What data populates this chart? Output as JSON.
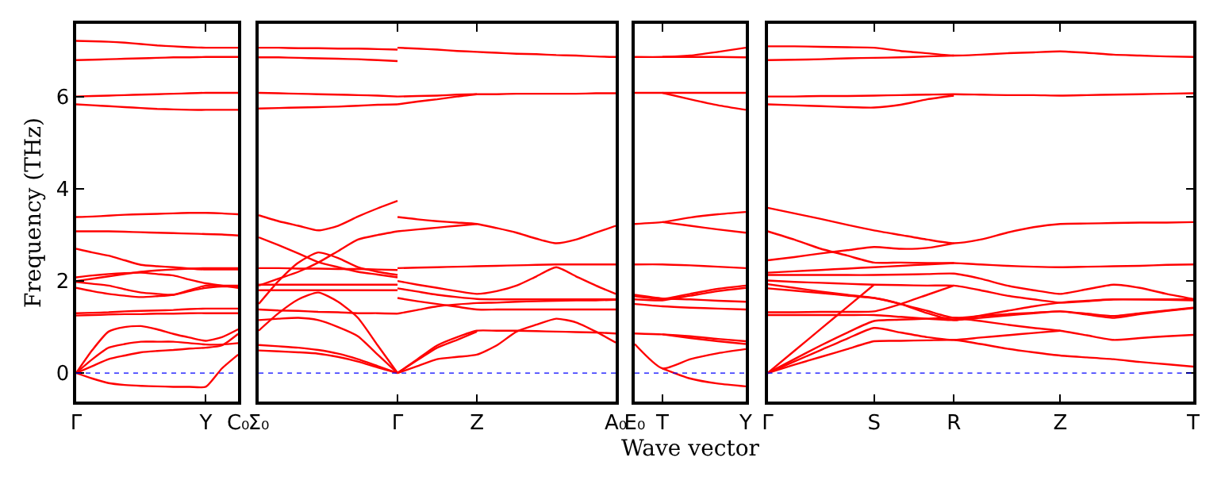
{
  "chart_data": [
    {
      "type": "line",
      "ylabel": "Frequency (THz)",
      "categories": [
        "Γ",
        null,
        null,
        null,
        null,
        null,
        null,
        null,
        "Y",
        null,
        "C₀"
      ],
      "ylim": [
        -0.62,
        7.59
      ],
      "yticks": [
        0,
        2,
        4,
        6
      ],
      "line_style": "solid",
      "ref_lines": [
        {
          "axis": "y",
          "value": 0,
          "color": "#0000ff",
          "line_style": "dotted"
        }
      ],
      "series": [
        {
          "color": "#ff0000",
          "values": [
            7.22,
            7.21,
            7.2,
            7.18,
            7.15,
            7.12,
            7.1,
            7.08,
            7.07,
            7.07,
            7.07
          ]
        },
        {
          "color": "#ff0000",
          "values": [
            6.8,
            6.81,
            6.82,
            6.83,
            6.84,
            6.85,
            6.86,
            6.86,
            6.87,
            6.87,
            6.87
          ]
        },
        {
          "color": "#ff0000",
          "values": [
            6.01,
            6.02,
            6.03,
            6.04,
            6.05,
            6.06,
            6.07,
            6.08,
            6.09,
            6.09,
            6.09
          ]
        },
        {
          "color": "#ff0000",
          "values": [
            5.84,
            5.82,
            5.8,
            5.78,
            5.76,
            5.74,
            5.73,
            5.72,
            5.72,
            5.72,
            5.72
          ]
        },
        {
          "color": "#ff0000",
          "values": [
            3.39,
            3.4,
            3.42,
            3.44,
            3.45,
            3.46,
            3.47,
            3.48,
            3.48,
            3.47,
            3.45
          ]
        },
        {
          "color": "#ff0000",
          "values": [
            3.08,
            3.08,
            3.08,
            3.07,
            3.06,
            3.05,
            3.04,
            3.03,
            3.02,
            3.01,
            2.99
          ]
        },
        {
          "color": "#ff0000",
          "values": [
            2.7,
            2.62,
            2.55,
            2.45,
            2.35,
            2.32,
            2.3,
            2.27,
            2.25,
            2.25,
            2.25
          ]
        },
        {
          "color": "#ff0000",
          "values": [
            2.08,
            2.12,
            2.15,
            2.17,
            2.18,
            2.15,
            2.12,
            2.03,
            1.95,
            1.9,
            1.85
          ]
        },
        {
          "color": "#ff0000",
          "values": [
            1.98,
            1.94,
            1.9,
            1.82,
            1.75,
            1.72,
            1.7,
            1.78,
            1.85,
            1.88,
            1.88
          ]
        },
        {
          "color": "#ff0000",
          "values": [
            1.85,
            1.78,
            1.72,
            1.68,
            1.65,
            1.67,
            1.7,
            1.8,
            1.9,
            1.9,
            1.9
          ]
        },
        {
          "color": "#ff0000",
          "values": [
            2.0,
            2.05,
            2.1,
            2.15,
            2.2,
            2.23,
            2.25,
            2.27,
            2.28,
            2.28,
            2.28
          ]
        },
        {
          "color": "#ff0000",
          "values": [
            1.25,
            1.26,
            1.27,
            1.28,
            1.28,
            1.29,
            1.29,
            1.3,
            1.3,
            1.3,
            1.3
          ]
        },
        {
          "color": "#ff0000",
          "values": [
            1.3,
            1.31,
            1.32,
            1.34,
            1.35,
            1.36,
            1.37,
            1.39,
            1.4,
            1.4,
            1.4
          ]
        },
        {
          "color": "#ff0000",
          "values": [
            0,
            0.5,
            0.9,
            1.0,
            1.02,
            0.95,
            0.85,
            0.77,
            0.7,
            0.78,
            0.95
          ]
        },
        {
          "color": "#ff0000",
          "values": [
            0,
            0.3,
            0.55,
            0.63,
            0.68,
            0.68,
            0.68,
            0.65,
            0.62,
            0.62,
            0.65
          ]
        },
        {
          "color": "#ff0000",
          "values": [
            0,
            0.15,
            0.3,
            0.38,
            0.45,
            0.48,
            0.5,
            0.53,
            0.55,
            0.6,
            0.85
          ]
        },
        {
          "color": "#ff0000",
          "values": [
            0,
            -0.12,
            -0.22,
            -0.26,
            -0.28,
            -0.29,
            -0.3,
            -0.3,
            -0.3,
            0.1,
            0.4
          ]
        }
      ]
    },
    {
      "type": "line",
      "categories": [
        "Σ₀",
        null,
        null,
        null,
        null,
        null,
        null,
        "Γ",
        null,
        null,
        null,
        "Z",
        null,
        null,
        null,
        null,
        null,
        null,
        "A₀"
      ],
      "ylim": [
        -0.62,
        7.59
      ],
      "yticks": [
        0,
        2,
        4,
        6
      ],
      "tick_labels": "x",
      "line_style": "solid",
      "ref_lines": [
        {
          "axis": "y",
          "value": 0,
          "color": "#0000ff",
          "line_style": "dotted"
        }
      ],
      "series": [
        {
          "color": "#ff0000",
          "values": [
            7.07,
            7.07,
            7.06,
            7.06,
            7.05,
            7.05,
            7.04,
            7.03,
            null,
            null,
            null,
            null,
            null,
            null,
            null,
            null,
            null,
            null,
            null
          ]
        },
        {
          "color": "#ff0000",
          "values": [
            6.86,
            6.86,
            6.85,
            6.84,
            6.83,
            6.82,
            6.8,
            6.78,
            null,
            null,
            null,
            null,
            null,
            null,
            null,
            null,
            null,
            null,
            null
          ]
        },
        {
          "color": "#ff0000",
          "values": [
            6.09,
            6.08,
            6.07,
            6.06,
            6.05,
            6.04,
            6.03,
            6.01,
            null,
            null,
            null,
            null,
            null,
            null,
            null,
            null,
            null,
            null,
            null
          ]
        },
        {
          "color": "#ff0000",
          "values": [
            5.75,
            5.76,
            5.77,
            5.78,
            5.79,
            5.81,
            5.83,
            5.84,
            null,
            null,
            null,
            null,
            null,
            null,
            null,
            null,
            null,
            null,
            null
          ]
        },
        {
          "color": "#ff0000",
          "values": [
            3.43,
            3.3,
            3.2,
            3.1,
            3.2,
            3.4,
            3.58,
            3.74,
            null,
            null,
            null,
            null,
            null,
            null,
            null,
            null,
            null,
            null,
            null
          ]
        },
        {
          "color": "#ff0000",
          "values": [
            2.95,
            2.78,
            2.6,
            2.41,
            2.3,
            2.2,
            2.14,
            2.08,
            null,
            null,
            null,
            null,
            null,
            null,
            null,
            null,
            null,
            null,
            null
          ]
        },
        {
          "color": "#ff0000",
          "values": [
            1.9,
            2.05,
            2.2,
            2.4,
            2.65,
            2.9,
            3.0,
            3.08,
            null,
            null,
            null,
            null,
            null,
            null,
            null,
            null,
            null,
            null,
            null
          ]
        },
        {
          "color": "#ff0000",
          "values": [
            1.5,
            2.0,
            2.4,
            2.62,
            2.5,
            2.3,
            2.2,
            2.13,
            null,
            null,
            null,
            null,
            null,
            null,
            null,
            null,
            null,
            null,
            null
          ]
        },
        {
          "color": "#ff0000",
          "values": [
            2.28,
            2.28,
            2.27,
            2.27,
            2.26,
            2.26,
            2.25,
            2.24,
            null,
            null,
            null,
            null,
            null,
            null,
            null,
            null,
            null,
            null,
            null
          ]
        },
        {
          "color": "#ff0000",
          "values": [
            1.92,
            1.92,
            1.92,
            1.92,
            1.92,
            1.92,
            1.92,
            1.92,
            null,
            null,
            null,
            null,
            null,
            null,
            null,
            null,
            null,
            null,
            null
          ]
        },
        {
          "color": "#ff0000",
          "values": [
            1.8,
            1.8,
            1.8,
            1.8,
            1.8,
            1.8,
            1.8,
            1.8,
            null,
            null,
            null,
            null,
            null,
            null,
            null,
            null,
            null,
            null,
            null
          ]
        },
        {
          "color": "#ff0000",
          "values": [
            1.38,
            1.36,
            1.35,
            1.33,
            1.32,
            1.3,
            1.3,
            1.29,
            null,
            null,
            null,
            null,
            null,
            null,
            null,
            null,
            null,
            null,
            null
          ]
        },
        {
          "color": "#ff0000",
          "values": [
            0.92,
            1.3,
            1.6,
            1.75,
            1.55,
            1.2,
            0.6,
            0,
            null,
            null,
            null,
            null,
            null,
            null,
            null,
            null,
            null,
            null,
            null
          ]
        },
        {
          "color": "#ff0000",
          "values": [
            1.15,
            1.18,
            1.2,
            1.15,
            1.0,
            0.8,
            0.4,
            0,
            null,
            null,
            null,
            null,
            null,
            null,
            null,
            null,
            null,
            null,
            null
          ]
        },
        {
          "color": "#ff0000",
          "values": [
            0.61,
            0.58,
            0.55,
            0.5,
            0.42,
            0.3,
            0.15,
            0,
            null,
            null,
            null,
            null,
            null,
            null,
            null,
            null,
            null,
            null,
            null
          ]
        },
        {
          "color": "#ff0000",
          "values": [
            0.49,
            0.47,
            0.45,
            0.42,
            0.35,
            0.25,
            0.12,
            0,
            null,
            null,
            null,
            null,
            null,
            null,
            null,
            null,
            null,
            null,
            null
          ]
        },
        {
          "color": "#ff0000",
          "values": [
            null,
            null,
            null,
            null,
            null,
            null,
            null,
            7.07,
            7.05,
            7.03,
            7.0,
            6.98,
            6.96,
            6.94,
            6.93,
            6.91,
            6.9,
            6.88,
            6.87
          ]
        },
        {
          "color": "#ff0000",
          "values": [
            null,
            null,
            null,
            null,
            null,
            null,
            null,
            6.01,
            6.02,
            6.03,
            6.05,
            6.06,
            6.06,
            6.07,
            6.07,
            6.07,
            6.07,
            6.08,
            6.08
          ]
        },
        {
          "color": "#ff0000",
          "values": [
            null,
            null,
            null,
            null,
            null,
            null,
            null,
            5.84,
            5.9,
            5.95,
            6.01,
            6.06,
            null,
            null,
            null,
            null,
            null,
            null,
            null
          ]
        },
        {
          "color": "#ff0000",
          "values": [
            null,
            null,
            null,
            null,
            null,
            null,
            null,
            3.39,
            3.34,
            3.3,
            3.27,
            3.24,
            3.15,
            3.05,
            2.92,
            2.82,
            2.9,
            3.05,
            3.2
          ]
        },
        {
          "color": "#ff0000",
          "values": [
            null,
            null,
            null,
            null,
            null,
            null,
            null,
            3.08,
            3.12,
            3.16,
            3.2,
            3.24,
            null,
            null,
            null,
            null,
            null,
            null,
            null
          ]
        },
        {
          "color": "#ff0000",
          "values": [
            null,
            null,
            null,
            null,
            null,
            null,
            null,
            2.28,
            2.29,
            2.3,
            2.31,
            2.32,
            2.33,
            2.34,
            2.35,
            2.36,
            2.36,
            2.36,
            2.36
          ]
        },
        {
          "color": "#ff0000",
          "values": [
            null,
            null,
            null,
            null,
            null,
            null,
            null,
            2.0,
            1.92,
            1.85,
            1.78,
            1.72,
            1.78,
            1.9,
            2.1,
            2.3,
            2.1,
            1.9,
            1.72
          ]
        },
        {
          "color": "#ff0000",
          "values": [
            null,
            null,
            null,
            null,
            null,
            null,
            null,
            1.84,
            1.77,
            1.7,
            1.65,
            1.61,
            1.6,
            1.6,
            1.6,
            1.6,
            1.6,
            1.6,
            1.6
          ]
        },
        {
          "color": "#ff0000",
          "values": [
            null,
            null,
            null,
            null,
            null,
            null,
            null,
            1.63,
            1.56,
            1.5,
            1.44,
            1.38,
            1.38,
            1.38,
            1.38,
            1.38,
            1.38,
            1.38,
            1.38
          ]
        },
        {
          "color": "#ff0000",
          "values": [
            null,
            null,
            null,
            null,
            null,
            null,
            null,
            1.29,
            1.37,
            1.45,
            1.49,
            1.52,
            1.53,
            1.55,
            1.56,
            1.57,
            1.58,
            1.58,
            1.59
          ]
        },
        {
          "color": "#ff0000",
          "values": [
            null,
            null,
            null,
            null,
            null,
            null,
            null,
            0,
            0.3,
            0.6,
            0.78,
            0.92,
            0.92,
            0.92,
            0.91,
            0.9,
            0.89,
            0.88,
            0.86
          ]
        },
        {
          "color": "#ff0000",
          "values": [
            null,
            null,
            null,
            null,
            null,
            null,
            null,
            0,
            0.15,
            0.3,
            0.35,
            0.4,
            0.6,
            0.9,
            1.05,
            1.18,
            1.1,
            0.9,
            0.66
          ]
        },
        {
          "color": "#ff0000",
          "values": [
            null,
            null,
            null,
            null,
            null,
            null,
            null,
            0,
            0.28,
            0.55,
            0.72,
            0.9,
            null,
            null,
            null,
            null,
            null,
            null,
            null
          ]
        }
      ]
    },
    {
      "type": "line",
      "xlabel": "Wave vector",
      "categories": [
        "E₀",
        "T",
        null,
        null,
        "Y"
      ],
      "ylim": [
        -0.62,
        7.59
      ],
      "yticks": [
        0,
        2,
        4,
        6
      ],
      "tick_labels": "x",
      "line_style": "solid",
      "ref_lines": [
        {
          "axis": "y",
          "value": 0,
          "color": "#0000ff",
          "line_style": "dotted"
        }
      ],
      "series": [
        {
          "color": "#ff0000",
          "values": [
            6.87,
            6.87,
            6.9,
            6.98,
            7.07
          ]
        },
        {
          "color": "#ff0000",
          "values": [
            null,
            6.87,
            6.87,
            6.87,
            6.86
          ]
        },
        {
          "color": "#ff0000",
          "values": [
            6.09,
            6.09,
            6.09,
            6.09,
            6.09
          ]
        },
        {
          "color": "#ff0000",
          "values": [
            null,
            6.09,
            5.95,
            5.82,
            5.72
          ]
        },
        {
          "color": "#ff0000",
          "values": [
            3.24,
            3.28,
            3.38,
            3.45,
            3.5
          ]
        },
        {
          "color": "#ff0000",
          "values": [
            null,
            3.28,
            3.2,
            3.12,
            3.05
          ]
        },
        {
          "color": "#ff0000",
          "values": [
            2.36,
            2.36,
            2.34,
            2.31,
            2.28
          ]
        },
        {
          "color": "#ff0000",
          "values": [
            1.67,
            1.61,
            1.72,
            1.83,
            1.9
          ]
        },
        {
          "color": "#ff0000",
          "values": [
            1.6,
            1.58,
            1.68,
            1.78,
            1.85
          ]
        },
        {
          "color": "#ff0000",
          "values": [
            1.7,
            1.62,
            1.6,
            1.57,
            1.55
          ]
        },
        {
          "color": "#ff0000",
          "values": [
            1.5,
            1.45,
            1.42,
            1.4,
            1.38
          ]
        },
        {
          "color": "#ff0000",
          "values": [
            0.86,
            0.84,
            0.8,
            0.74,
            0.69
          ]
        },
        {
          "color": "#ff0000",
          "values": [
            null,
            0.84,
            0.76,
            0.69,
            0.63
          ]
        },
        {
          "color": "#ff0000",
          "values": [
            0.63,
            0.1,
            0.3,
            0.43,
            0.52
          ]
        },
        {
          "color": "#ff0000",
          "values": [
            null,
            0.1,
            -0.12,
            -0.23,
            -0.29
          ]
        }
      ]
    },
    {
      "type": "line",
      "categories": [
        "Γ",
        null,
        null,
        null,
        "S",
        null,
        null,
        "R",
        null,
        null,
        null,
        "Z",
        null,
        null,
        null,
        null,
        "T"
      ],
      "ylim": [
        -0.62,
        7.59
      ],
      "yticks": [
        0,
        2,
        4,
        6
      ],
      "tick_labels": "x",
      "line_style": "solid",
      "ref_lines": [
        {
          "axis": "y",
          "value": 0,
          "color": "#0000ff",
          "line_style": "dotted"
        }
      ],
      "series": [
        {
          "color": "#ff0000",
          "values": [
            7.1,
            7.1,
            7.09,
            7.08,
            7.07,
            7.0,
            6.95,
            6.9,
            6.92,
            6.95,
            6.97,
            6.99,
            6.96,
            6.92,
            6.9,
            6.88,
            6.87
          ]
        },
        {
          "color": "#ff0000",
          "values": [
            6.8,
            6.81,
            6.82,
            6.84,
            6.85,
            6.86,
            6.88,
            6.9,
            null,
            null,
            null,
            null,
            null,
            null,
            null,
            null,
            null
          ]
        },
        {
          "color": "#ff0000",
          "values": [
            6.01,
            6.01,
            6.02,
            6.02,
            6.03,
            6.04,
            6.05,
            6.06,
            6.05,
            6.04,
            6.04,
            6.03,
            6.04,
            6.05,
            6.06,
            6.07,
            6.08
          ]
        },
        {
          "color": "#ff0000",
          "values": [
            5.84,
            5.82,
            5.8,
            5.78,
            5.77,
            5.83,
            5.95,
            6.03,
            null,
            null,
            null,
            null,
            null,
            null,
            null,
            null,
            null
          ]
        },
        {
          "color": "#ff0000",
          "values": [
            3.59,
            3.47,
            3.35,
            3.22,
            3.1,
            3.0,
            2.9,
            2.82,
            2.9,
            3.05,
            3.17,
            3.24,
            3.25,
            3.26,
            3.27,
            3.27,
            3.28
          ]
        },
        {
          "color": "#ff0000",
          "values": [
            2.45,
            2.52,
            2.6,
            2.67,
            2.74,
            2.7,
            2.72,
            2.82,
            null,
            null,
            null,
            null,
            null,
            null,
            null,
            null,
            null
          ]
        },
        {
          "color": "#ff0000",
          "values": [
            3.08,
            2.9,
            2.7,
            2.55,
            2.4,
            2.4,
            2.39,
            2.39,
            2.36,
            2.33,
            2.31,
            2.3,
            2.31,
            2.32,
            2.33,
            2.35,
            2.36
          ]
        },
        {
          "color": "#ff0000",
          "values": [
            2.18,
            2.21,
            2.24,
            2.27,
            2.3,
            2.33,
            2.36,
            2.39,
            null,
            null,
            null,
            null,
            null,
            null,
            null,
            null,
            null
          ]
        },
        {
          "color": "#ff0000",
          "values": [
            2.13,
            2.13,
            2.13,
            2.13,
            2.13,
            2.14,
            2.15,
            2.16,
            2.05,
            1.9,
            1.8,
            1.72,
            1.82,
            1.92,
            1.85,
            1.72,
            1.61
          ]
        },
        {
          "color": "#ff0000",
          "values": [
            2.01,
            1.98,
            1.96,
            1.94,
            1.92,
            1.91,
            1.9,
            1.9,
            1.8,
            1.68,
            1.6,
            1.53,
            1.56,
            1.6,
            1.6,
            1.59,
            1.58
          ]
        },
        {
          "color": "#ff0000",
          "values": [
            1.93,
            1.85,
            1.77,
            1.7,
            1.63,
            1.5,
            1.35,
            1.2,
            1.24,
            1.28,
            1.31,
            1.34,
            1.27,
            1.2,
            1.28,
            1.35,
            1.41
          ]
        },
        {
          "color": "#ff0000",
          "values": [
            1.84,
            1.79,
            1.74,
            1.68,
            1.63,
            1.5,
            1.3,
            1.15,
            1.25,
            1.35,
            1.45,
            1.53,
            1.57,
            1.6,
            1.6,
            1.6,
            1.6
          ]
        },
        {
          "color": "#ff0000",
          "values": [
            1.32,
            1.32,
            1.33,
            1.33,
            1.34,
            1.5,
            1.7,
            1.9,
            null,
            null,
            null,
            null,
            null,
            null,
            null,
            null,
            null
          ]
        },
        {
          "color": "#ff0000",
          "values": [
            1.26,
            1.26,
            1.26,
            1.26,
            1.26,
            1.22,
            1.18,
            1.15,
            1.2,
            1.25,
            1.3,
            1.34,
            1.29,
            1.24,
            1.3,
            1.36,
            1.42
          ]
        },
        {
          "color": "#ff0000",
          "values": [
            0,
            0.3,
            0.6,
            0.88,
            1.13,
            1.16,
            1.18,
            1.2,
            1.13,
            1.05,
            0.98,
            0.92,
            0.82,
            0.72,
            0.76,
            0.8,
            0.83
          ]
        },
        {
          "color": "#ff0000",
          "values": [
            0,
            0.25,
            0.5,
            0.75,
            0.98,
            0.88,
            0.78,
            0.72,
            0.77,
            0.82,
            0.87,
            0.92,
            null,
            null,
            null,
            null,
            null
          ]
        },
        {
          "color": "#ff0000",
          "values": [
            0,
            0.18,
            0.35,
            0.52,
            0.69,
            0.7,
            0.71,
            0.72,
            0.63,
            0.53,
            0.45,
            0.38,
            0.34,
            0.3,
            0.24,
            0.19,
            0.14
          ]
        },
        {
          "color": "#ff0000",
          "values": [
            0,
            0.48,
            0.96,
            1.44,
            1.92,
            null,
            null,
            null,
            null,
            null,
            null,
            null,
            null,
            null,
            null,
            null,
            null
          ]
        }
      ]
    }
  ]
}
